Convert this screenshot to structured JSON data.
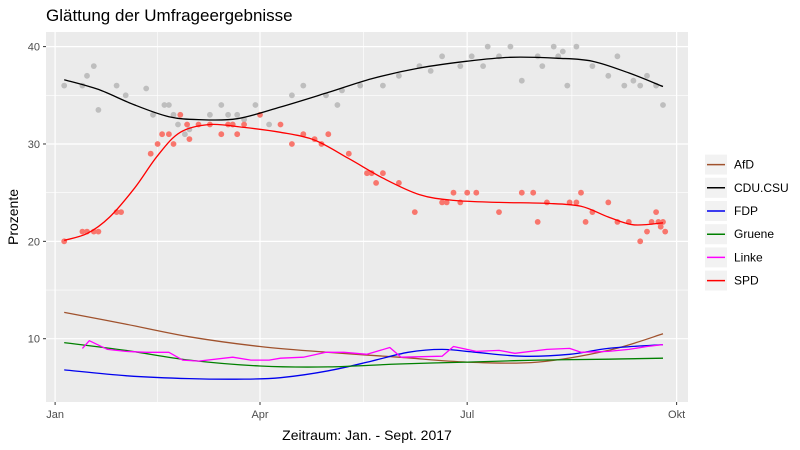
{
  "chart_data": {
    "type": "scatter",
    "title": "Glättung der Umfrageergebnisse",
    "xlabel": "Zeitraum: Jan. - Sept. 2017",
    "ylabel": "Prozente",
    "xlim": [
      "2016-12-28",
      "2017-10-06"
    ],
    "ylim": [
      3.5,
      41.5
    ],
    "x_ticks": [
      {
        "date": "2017-01-01",
        "label": "Jan"
      },
      {
        "date": "2017-04-01",
        "label": "Apr"
      },
      {
        "date": "2017-07-01",
        "label": "Jul"
      },
      {
        "date": "2017-10-01",
        "label": "Okt"
      }
    ],
    "y_ticks": [
      10,
      20,
      30,
      40
    ],
    "grid": true,
    "panel_background": "#ebebeb",
    "legend_position": "right",
    "series": [
      {
        "name": "AfD",
        "color": "#a0522d",
        "kind": "smooth",
        "points": [
          [
            "2017-01-05",
            12.7
          ],
          [
            "2017-02-01",
            11.5
          ],
          [
            "2017-03-01",
            10.2
          ],
          [
            "2017-04-01",
            9.2
          ],
          [
            "2017-05-01",
            8.6
          ],
          [
            "2017-06-01",
            8.1
          ],
          [
            "2017-07-01",
            7.6
          ],
          [
            "2017-08-01",
            7.6
          ],
          [
            "2017-09-01",
            8.8
          ],
          [
            "2017-09-25",
            10.5
          ]
        ]
      },
      {
        "name": "CDU.CSU",
        "color": "#000000",
        "kind": "smooth",
        "points": [
          [
            "2017-01-05",
            36.6
          ],
          [
            "2017-01-20",
            35.6
          ],
          [
            "2017-02-05",
            34.0
          ],
          [
            "2017-02-20",
            32.8
          ],
          [
            "2017-03-05",
            32.5
          ],
          [
            "2017-03-22",
            32.6
          ],
          [
            "2017-04-10",
            33.8
          ],
          [
            "2017-05-01",
            35.3
          ],
          [
            "2017-05-20",
            36.7
          ],
          [
            "2017-06-10",
            37.8
          ],
          [
            "2017-07-01",
            38.5
          ],
          [
            "2017-07-20",
            38.9
          ],
          [
            "2017-08-10",
            38.8
          ],
          [
            "2017-08-25",
            38.5
          ],
          [
            "2017-09-10",
            37.3
          ],
          [
            "2017-09-25",
            35.9
          ]
        ]
      },
      {
        "name": "FDP",
        "color": "#0000ee",
        "kind": "smooth",
        "points": [
          [
            "2017-01-05",
            6.8
          ],
          [
            "2017-02-01",
            6.2
          ],
          [
            "2017-03-01",
            5.9
          ],
          [
            "2017-03-25",
            5.85
          ],
          [
            "2017-04-10",
            6.0
          ],
          [
            "2017-05-01",
            6.7
          ],
          [
            "2017-05-20",
            7.7
          ],
          [
            "2017-06-05",
            8.6
          ],
          [
            "2017-06-20",
            8.9
          ],
          [
            "2017-07-05",
            8.6
          ],
          [
            "2017-07-25",
            8.2
          ],
          [
            "2017-08-15",
            8.4
          ],
          [
            "2017-09-01",
            9.0
          ],
          [
            "2017-09-25",
            9.4
          ]
        ]
      },
      {
        "name": "Gruene",
        "color": "#008000",
        "kind": "smooth",
        "points": [
          [
            "2017-01-05",
            9.6
          ],
          [
            "2017-02-01",
            8.8
          ],
          [
            "2017-03-01",
            7.8
          ],
          [
            "2017-04-01",
            7.2
          ],
          [
            "2017-05-01",
            7.1
          ],
          [
            "2017-06-01",
            7.4
          ],
          [
            "2017-07-01",
            7.6
          ],
          [
            "2017-08-01",
            7.8
          ],
          [
            "2017-09-01",
            7.9
          ],
          [
            "2017-09-25",
            8.0
          ]
        ]
      },
      {
        "name": "Linke",
        "color": "#ff00ff",
        "kind": "line",
        "points": [
          [
            "2017-01-13",
            9.0
          ],
          [
            "2017-01-16",
            9.8
          ],
          [
            "2017-01-24",
            8.9
          ],
          [
            "2017-02-01",
            8.7
          ],
          [
            "2017-02-10",
            8.6
          ],
          [
            "2017-02-20",
            8.6
          ],
          [
            "2017-02-26",
            7.8
          ],
          [
            "2017-03-05",
            7.7
          ],
          [
            "2017-03-20",
            8.1
          ],
          [
            "2017-03-28",
            7.8
          ],
          [
            "2017-04-05",
            7.8
          ],
          [
            "2017-04-10",
            8.0
          ],
          [
            "2017-04-20",
            8.1
          ],
          [
            "2017-04-30",
            8.6
          ],
          [
            "2017-05-08",
            8.6
          ],
          [
            "2017-05-18",
            8.4
          ],
          [
            "2017-05-28",
            9.1
          ],
          [
            "2017-06-02",
            8.1
          ],
          [
            "2017-06-20",
            8.2
          ],
          [
            "2017-06-25",
            9.2
          ],
          [
            "2017-07-05",
            8.7
          ],
          [
            "2017-07-15",
            8.8
          ],
          [
            "2017-07-22",
            8.5
          ],
          [
            "2017-08-05",
            8.9
          ],
          [
            "2017-08-15",
            9.0
          ],
          [
            "2017-08-20",
            8.6
          ],
          [
            "2017-09-01",
            8.7
          ],
          [
            "2017-09-10",
            8.9
          ],
          [
            "2017-09-18",
            9.2
          ],
          [
            "2017-09-25",
            9.4
          ]
        ]
      },
      {
        "name": "SPD",
        "color": "#ff0000",
        "kind": "smooth",
        "points": [
          [
            "2017-01-05",
            20.1
          ],
          [
            "2017-01-15",
            20.8
          ],
          [
            "2017-01-25",
            22.5
          ],
          [
            "2017-02-05",
            25.5
          ],
          [
            "2017-02-15",
            28.8
          ],
          [
            "2017-02-25",
            31.2
          ],
          [
            "2017-03-10",
            32.0
          ],
          [
            "2017-03-25",
            31.7
          ],
          [
            "2017-04-10",
            31.2
          ],
          [
            "2017-04-25",
            30.4
          ],
          [
            "2017-05-10",
            28.5
          ],
          [
            "2017-05-25",
            26.5
          ],
          [
            "2017-06-10",
            24.8
          ],
          [
            "2017-06-25",
            24.2
          ],
          [
            "2017-07-15",
            24.0
          ],
          [
            "2017-08-05",
            23.9
          ],
          [
            "2017-08-20",
            23.6
          ],
          [
            "2017-09-01",
            22.5
          ],
          [
            "2017-09-12",
            21.7
          ],
          [
            "2017-09-25",
            21.9
          ]
        ]
      },
      {
        "name": "CDU.CSU Umfragen",
        "color": "#bebebe",
        "kind": "points",
        "points": [
          [
            "2017-01-05",
            36
          ],
          [
            "2017-01-15",
            37
          ],
          [
            "2017-01-13",
            36
          ],
          [
            "2017-01-18",
            38
          ],
          [
            "2017-01-20",
            33.5
          ],
          [
            "2017-01-28",
            36
          ],
          [
            "2017-02-01",
            35
          ],
          [
            "2017-02-10",
            35.7
          ],
          [
            "2017-02-13",
            33
          ],
          [
            "2017-02-18",
            34
          ],
          [
            "2017-02-20",
            34
          ],
          [
            "2017-02-22",
            33
          ],
          [
            "2017-02-24",
            32
          ],
          [
            "2017-02-27",
            31
          ],
          [
            "2017-03-01",
            31.5
          ],
          [
            "2017-03-10",
            33
          ],
          [
            "2017-03-15",
            34
          ],
          [
            "2017-03-18",
            33
          ],
          [
            "2017-03-20",
            32
          ],
          [
            "2017-03-22",
            33
          ],
          [
            "2017-03-25",
            32.5
          ],
          [
            "2017-03-30",
            34
          ],
          [
            "2017-04-05",
            32
          ],
          [
            "2017-04-15",
            35
          ],
          [
            "2017-04-20",
            36
          ],
          [
            "2017-04-30",
            35
          ],
          [
            "2017-05-05",
            34
          ],
          [
            "2017-05-07",
            35.5
          ],
          [
            "2017-05-15",
            36
          ],
          [
            "2017-05-25",
            36
          ],
          [
            "2017-06-01",
            37
          ],
          [
            "2017-06-10",
            38
          ],
          [
            "2017-06-15",
            37.5
          ],
          [
            "2017-06-20",
            39
          ],
          [
            "2017-06-28",
            38
          ],
          [
            "2017-07-03",
            39
          ],
          [
            "2017-07-08",
            38
          ],
          [
            "2017-07-10",
            40
          ],
          [
            "2017-07-15",
            39
          ],
          [
            "2017-07-20",
            40
          ],
          [
            "2017-07-25",
            36.5
          ],
          [
            "2017-08-01",
            39
          ],
          [
            "2017-08-03",
            38
          ],
          [
            "2017-08-08",
            40
          ],
          [
            "2017-08-10",
            39
          ],
          [
            "2017-08-12",
            39.5
          ],
          [
            "2017-08-14",
            36
          ],
          [
            "2017-08-18",
            40
          ],
          [
            "2017-08-25",
            38
          ],
          [
            "2017-09-01",
            37
          ],
          [
            "2017-09-05",
            39
          ],
          [
            "2017-09-08",
            36
          ],
          [
            "2017-09-12",
            36.5
          ],
          [
            "2017-09-15",
            36
          ],
          [
            "2017-09-18",
            37
          ],
          [
            "2017-09-22",
            36
          ],
          [
            "2017-09-25",
            34
          ]
        ]
      },
      {
        "name": "SPD Umfragen",
        "color": "#f8766d",
        "kind": "points",
        "points": [
          [
            "2017-01-05",
            20
          ],
          [
            "2017-01-13",
            21
          ],
          [
            "2017-01-15",
            21
          ],
          [
            "2017-01-18",
            21
          ],
          [
            "2017-01-20",
            21
          ],
          [
            "2017-01-28",
            23
          ],
          [
            "2017-01-30",
            23
          ],
          [
            "2017-02-12",
            29
          ],
          [
            "2017-02-15",
            30
          ],
          [
            "2017-02-17",
            31
          ],
          [
            "2017-02-20",
            31
          ],
          [
            "2017-02-22",
            30
          ],
          [
            "2017-02-25",
            33
          ],
          [
            "2017-02-28",
            32
          ],
          [
            "2017-03-01",
            30.5
          ],
          [
            "2017-03-05",
            32
          ],
          [
            "2017-03-10",
            32
          ],
          [
            "2017-03-15",
            31
          ],
          [
            "2017-03-18",
            32
          ],
          [
            "2017-03-20",
            32
          ],
          [
            "2017-03-22",
            31
          ],
          [
            "2017-03-25",
            32
          ],
          [
            "2017-04-01",
            33
          ],
          [
            "2017-04-10",
            32
          ],
          [
            "2017-04-15",
            30
          ],
          [
            "2017-04-20",
            31
          ],
          [
            "2017-04-25",
            30.5
          ],
          [
            "2017-04-28",
            30
          ],
          [
            "2017-05-01",
            31
          ],
          [
            "2017-05-10",
            29
          ],
          [
            "2017-05-18",
            27
          ],
          [
            "2017-05-20",
            27
          ],
          [
            "2017-05-22",
            26
          ],
          [
            "2017-05-25",
            27
          ],
          [
            "2017-06-01",
            26
          ],
          [
            "2017-06-08",
            23
          ],
          [
            "2017-06-20",
            24
          ],
          [
            "2017-06-22",
            24
          ],
          [
            "2017-06-25",
            25
          ],
          [
            "2017-06-28",
            24
          ],
          [
            "2017-07-01",
            25
          ],
          [
            "2017-07-05",
            25
          ],
          [
            "2017-07-15",
            23
          ],
          [
            "2017-07-25",
            25
          ],
          [
            "2017-07-30",
            25
          ],
          [
            "2017-08-01",
            22
          ],
          [
            "2017-08-05",
            24
          ],
          [
            "2017-08-15",
            24
          ],
          [
            "2017-08-18",
            24
          ],
          [
            "2017-08-20",
            25
          ],
          [
            "2017-08-22",
            22
          ],
          [
            "2017-08-25",
            23
          ],
          [
            "2017-09-01",
            24
          ],
          [
            "2017-09-05",
            22
          ],
          [
            "2017-09-10",
            22
          ],
          [
            "2017-09-15",
            20
          ],
          [
            "2017-09-18",
            21
          ],
          [
            "2017-09-20",
            22
          ],
          [
            "2017-09-22",
            23
          ],
          [
            "2017-09-23",
            22
          ],
          [
            "2017-09-24",
            21.5
          ],
          [
            "2017-09-25",
            22
          ],
          [
            "2017-09-26",
            21
          ]
        ]
      }
    ],
    "legend": [
      {
        "name": "AfD",
        "color": "#a0522d"
      },
      {
        "name": "CDU.CSU",
        "color": "#000000"
      },
      {
        "name": "FDP",
        "color": "#0000ee"
      },
      {
        "name": "Gruene",
        "color": "#008000"
      },
      {
        "name": "Linke",
        "color": "#ff00ff"
      },
      {
        "name": "SPD",
        "color": "#ff0000"
      }
    ]
  }
}
